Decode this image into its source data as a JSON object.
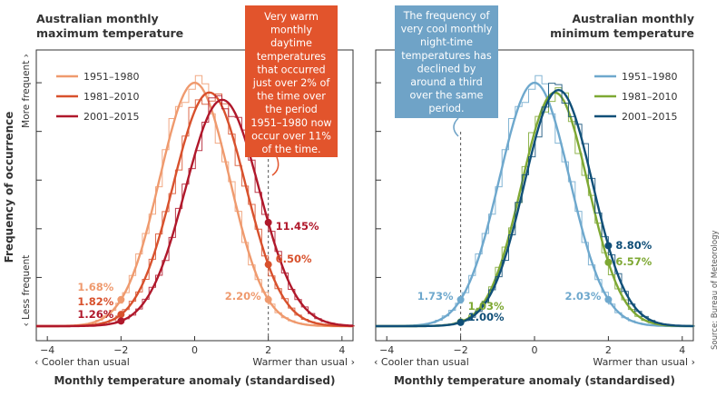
{
  "y_axis": {
    "label": "Frequency of occurrence",
    "top": "More frequent ›",
    "bottom": "‹ Less frequent"
  },
  "source": "Source: Bureau of Meteorology",
  "chart_data": [
    {
      "type": "line",
      "title": "Australian monthly maximum temperature",
      "xlabel": "Monthly temperature anomaly (standardised)",
      "ylabel": "Frequency of occurrence",
      "xlim": [
        -4.3,
        4.3
      ],
      "ylim": [
        0,
        1.06
      ],
      "xticks": [
        -4,
        -2,
        0,
        2,
        4
      ],
      "tick_labels": [
        "−4",
        "−2",
        "0",
        "2",
        "4"
      ],
      "x_note_left": "‹ Cooler than usual",
      "x_note_right": "Warmer than usual ›",
      "legend": "top-left",
      "series": [
        {
          "name": "1951–1980",
          "color": "#ef9a6e",
          "mean": 0.0,
          "sd": 0.95,
          "peak": 1.0
        },
        {
          "name": "1981–2010",
          "color": "#d8512d",
          "mean": 0.4,
          "sd": 0.98,
          "peak": 0.96
        },
        {
          "name": "2001–2015",
          "color": "#b0182b",
          "mean": 0.75,
          "sd": 1.0,
          "peak": 0.93
        }
      ],
      "labels_at_minus2": [
        {
          "text": "1.68%",
          "series": 0
        },
        {
          "text": "1.82%",
          "series": 1
        },
        {
          "text": "1.26%",
          "series": 2
        }
      ],
      "labels_at_plus2": [
        {
          "text": "11.45%",
          "series": 2
        },
        {
          "text": "6.50%",
          "series": 1
        },
        {
          "text": "2.20%",
          "series": 0
        }
      ],
      "callout": {
        "lines": [
          "Very warm",
          "monthly",
          "daytime",
          "temperatures",
          "that occurred",
          "just over 2% of",
          "the time over",
          "the period",
          "1951–1980 now",
          "occur over 11%",
          "of the time."
        ],
        "color": "#e2542c"
      }
    },
    {
      "type": "line",
      "title": "Australian monthly minimum temperature",
      "xlabel": "Monthly temperature anomaly (standardised)",
      "ylabel": "Frequency of occurrence",
      "xlim": [
        -4.3,
        4.3
      ],
      "ylim": [
        0,
        1.06
      ],
      "xticks": [
        -4,
        -2,
        0,
        2,
        4
      ],
      "tick_labels": [
        "−4",
        "−2",
        "0",
        "2",
        "4"
      ],
      "x_note_left": "‹ Cooler than usual",
      "x_note_right": "Warmer than usual ›",
      "legend": "top-right",
      "series": [
        {
          "name": "1951–1980",
          "color": "#6ea8cd",
          "mean": 0.0,
          "sd": 0.95,
          "peak": 1.0
        },
        {
          "name": "1981–2010",
          "color": "#7ea833",
          "mean": 0.55,
          "sd": 0.9,
          "peak": 0.96
        },
        {
          "name": "2001–2015",
          "color": "#104f78",
          "mean": 0.65,
          "sd": 0.92,
          "peak": 0.97
        }
      ],
      "labels_at_minus2": [
        {
          "text": "1.73%",
          "series": 0
        },
        {
          "text": "1.03%",
          "series": 1
        },
        {
          "text": "1.00%",
          "series": 2
        }
      ],
      "labels_at_plus2": [
        {
          "text": "8.80%",
          "series": 2
        },
        {
          "text": "6.57%",
          "series": 1
        },
        {
          "text": "2.03%",
          "series": 0
        }
      ],
      "callout": {
        "lines": [
          "The frequency of",
          "very cool monthly",
          "night-time",
          "temperatures has",
          "declined by",
          "around a third",
          "over the same",
          "period."
        ],
        "color": "#6fa3c7"
      }
    }
  ]
}
